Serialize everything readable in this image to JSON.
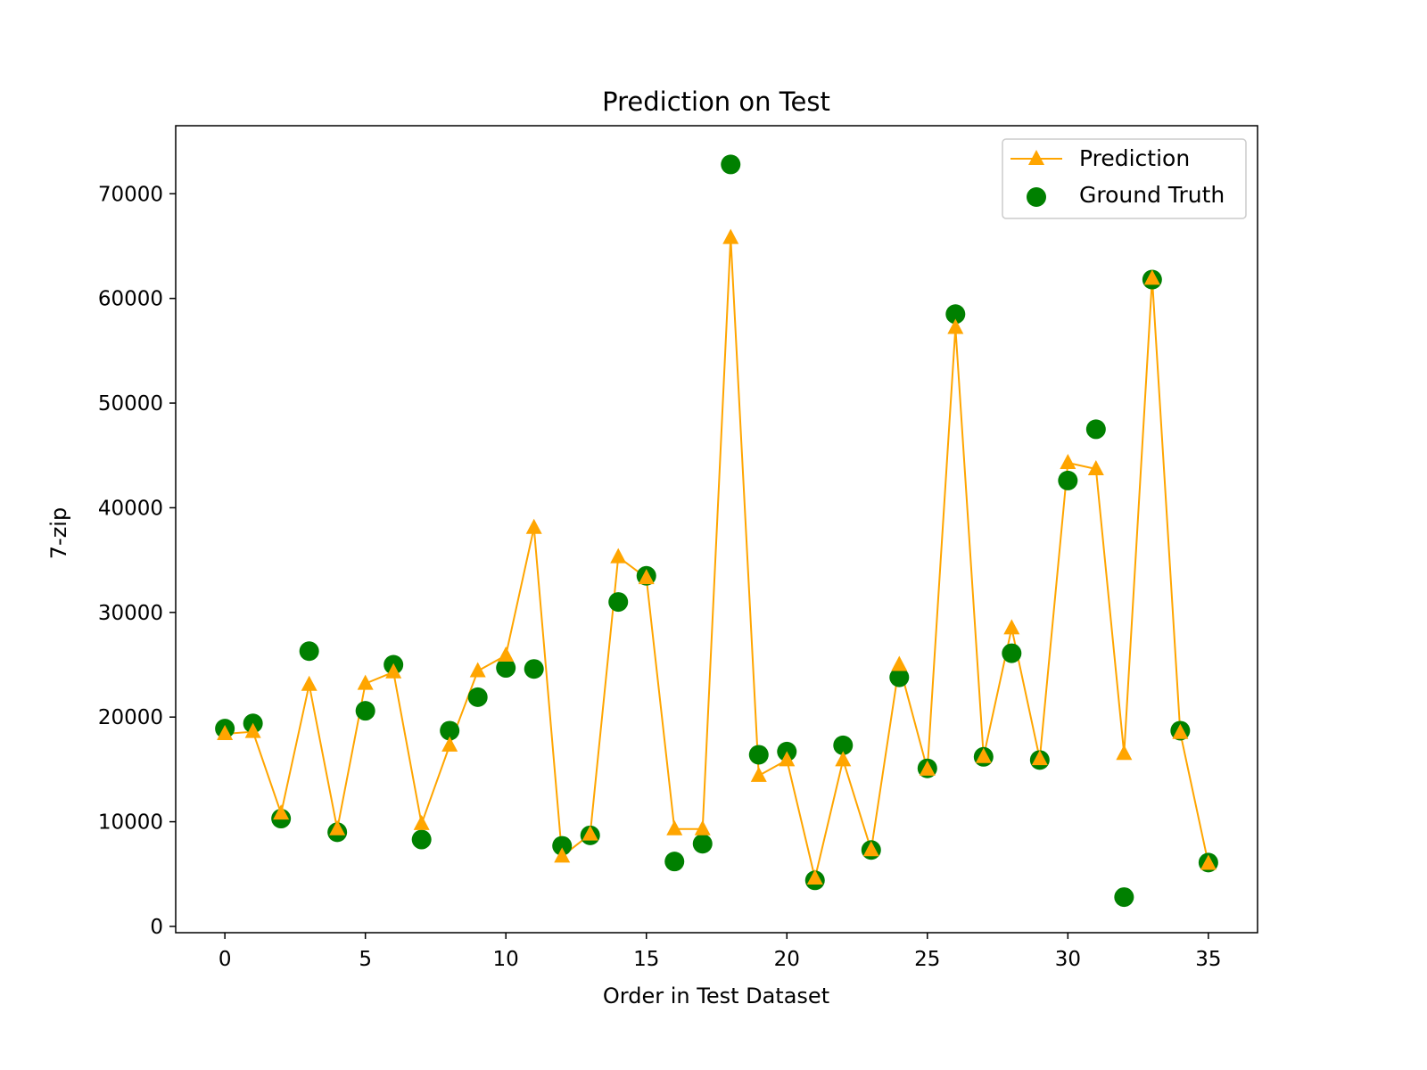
{
  "chart_data": {
    "type": "line",
    "title": "Prediction on Test",
    "xlabel": "Order in Test Dataset",
    "ylabel": "7-zip",
    "xlim": [
      -1.75,
      36.75
    ],
    "ylim": [
      -600,
      76500
    ],
    "xticks": [
      0,
      5,
      10,
      15,
      20,
      25,
      30,
      35
    ],
    "yticks": [
      0,
      10000,
      20000,
      30000,
      40000,
      50000,
      60000,
      70000
    ],
    "grid": false,
    "legend_position": "top-right",
    "x": [
      0,
      1,
      2,
      3,
      4,
      5,
      6,
      7,
      8,
      9,
      10,
      11,
      12,
      13,
      14,
      15,
      16,
      17,
      18,
      19,
      20,
      21,
      22,
      23,
      24,
      25,
      26,
      27,
      28,
      29,
      30,
      31,
      32,
      33,
      34,
      35
    ],
    "series": [
      {
        "name": "Prediction",
        "kind": "line-marker",
        "marker": "triangle",
        "color": "#FFA500",
        "values": [
          18400,
          18600,
          10800,
          23100,
          9300,
          23200,
          24300,
          9800,
          17300,
          24400,
          25900,
          38100,
          6700,
          8800,
          35300,
          33300,
          9300,
          9300,
          65800,
          14400,
          15900,
          4600,
          15900,
          7300,
          25000,
          15000,
          57200,
          16200,
          28500,
          16000,
          44300,
          43700,
          16500,
          61900,
          18500,
          6000
        ]
      },
      {
        "name": "Ground Truth",
        "kind": "scatter",
        "marker": "circle",
        "color": "#008000",
        "values": [
          18900,
          19400,
          10300,
          26300,
          9000,
          20600,
          25000,
          8300,
          18700,
          21900,
          24700,
          24600,
          7700,
          8700,
          31000,
          33500,
          6200,
          7900,
          72800,
          16400,
          16700,
          4400,
          17300,
          7300,
          23800,
          15100,
          58500,
          16200,
          26100,
          15900,
          42600,
          47500,
          2800,
          61800,
          18700,
          6100
        ]
      }
    ]
  }
}
